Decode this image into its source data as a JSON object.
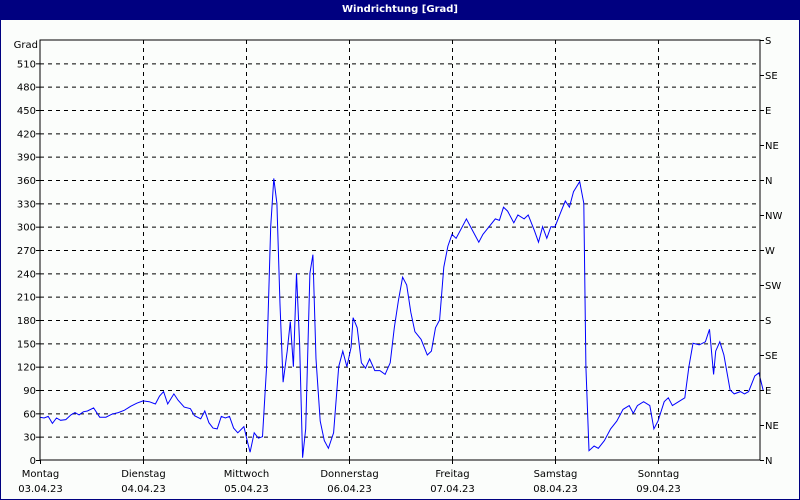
{
  "window": {
    "title": "Windrichtung [Grad]"
  },
  "colors": {
    "title_bar": "#000080",
    "background": "#fbfdfb",
    "series": "#0000ff",
    "grid": "#000000"
  },
  "chart_data": {
    "type": "line",
    "title": "Windrichtung [Grad]",
    "ylabel": "Grad",
    "xlabel": "",
    "ylim": [
      0,
      540
    ],
    "y_ticks": [
      0,
      30,
      60,
      90,
      120,
      150,
      180,
      210,
      240,
      270,
      300,
      330,
      360,
      390,
      420,
      450,
      480,
      510
    ],
    "y_top_label": "Grad",
    "right_axis_ticks": [
      {
        "value": 0,
        "label": "N"
      },
      {
        "value": 45,
        "label": "NE"
      },
      {
        "value": 90,
        "label": "E"
      },
      {
        "value": 135,
        "label": "SE"
      },
      {
        "value": 180,
        "label": "S"
      },
      {
        "value": 225,
        "label": "SW"
      },
      {
        "value": 270,
        "label": "W"
      },
      {
        "value": 315,
        "label": "NW"
      },
      {
        "value": 360,
        "label": "N"
      },
      {
        "value": 405,
        "label": "NE"
      },
      {
        "value": 450,
        "label": "E"
      },
      {
        "value": 495,
        "label": "SE"
      },
      {
        "value": 540,
        "label": "S"
      }
    ],
    "x_ticks": [
      {
        "day": "Montag",
        "date": "03.04.23"
      },
      {
        "day": "Dienstag",
        "date": "04.04.23"
      },
      {
        "day": "Mittwoch",
        "date": "05.04.23"
      },
      {
        "day": "Donnerstag",
        "date": "06.04.23"
      },
      {
        "day": "Freitag",
        "date": "07.04.23"
      },
      {
        "day": "Samstag",
        "date": "08.04.23"
      },
      {
        "day": "Sonntag",
        "date": "09.04.23"
      }
    ],
    "grid": true,
    "legend": "none",
    "x_unit": "days since 03.04.23 00:00",
    "series": [
      {
        "name": "Windrichtung",
        "points": [
          [
            0.0,
            55
          ],
          [
            0.04,
            54
          ],
          [
            0.08,
            56
          ],
          [
            0.12,
            47
          ],
          [
            0.16,
            54
          ],
          [
            0.2,
            51
          ],
          [
            0.25,
            52
          ],
          [
            0.3,
            58
          ],
          [
            0.34,
            61
          ],
          [
            0.38,
            58
          ],
          [
            0.42,
            62
          ],
          [
            0.46,
            63
          ],
          [
            0.52,
            67
          ],
          [
            0.58,
            55
          ],
          [
            0.64,
            55
          ],
          [
            0.7,
            59
          ],
          [
            0.76,
            61
          ],
          [
            0.82,
            64
          ],
          [
            0.88,
            69
          ],
          [
            0.94,
            73
          ],
          [
            1.0,
            76
          ],
          [
            1.06,
            75
          ],
          [
            1.12,
            72
          ],
          [
            1.16,
            82
          ],
          [
            1.2,
            88
          ],
          [
            1.24,
            72
          ],
          [
            1.3,
            85
          ],
          [
            1.34,
            77
          ],
          [
            1.4,
            68
          ],
          [
            1.46,
            66
          ],
          [
            1.5,
            57
          ],
          [
            1.56,
            53
          ],
          [
            1.6,
            63
          ],
          [
            1.64,
            48
          ],
          [
            1.68,
            41
          ],
          [
            1.72,
            40
          ],
          [
            1.76,
            56
          ],
          [
            1.8,
            54
          ],
          [
            1.84,
            56
          ],
          [
            1.88,
            41
          ],
          [
            1.92,
            35
          ],
          [
            1.98,
            43
          ],
          [
            2.02,
            20
          ],
          [
            2.04,
            10
          ],
          [
            2.08,
            35
          ],
          [
            2.12,
            28
          ],
          [
            2.16,
            30
          ],
          [
            2.2,
            120
          ],
          [
            2.24,
            300
          ],
          [
            2.27,
            362
          ],
          [
            2.3,
            330
          ],
          [
            2.33,
            200
          ],
          [
            2.36,
            100
          ],
          [
            2.4,
            140
          ],
          [
            2.43,
            178
          ],
          [
            2.46,
            120
          ],
          [
            2.49,
            240
          ],
          [
            2.52,
            150
          ],
          [
            2.55,
            3
          ],
          [
            2.58,
            40
          ],
          [
            2.62,
            240
          ],
          [
            2.65,
            264
          ],
          [
            2.68,
            130
          ],
          [
            2.72,
            50
          ],
          [
            2.76,
            25
          ],
          [
            2.8,
            15
          ],
          [
            2.85,
            35
          ],
          [
            2.9,
            120
          ],
          [
            2.94,
            140
          ],
          [
            2.98,
            120
          ],
          [
            3.02,
            145
          ],
          [
            3.04,
            183
          ],
          [
            3.08,
            170
          ],
          [
            3.12,
            125
          ],
          [
            3.16,
            118
          ],
          [
            3.2,
            130
          ],
          [
            3.25,
            115
          ],
          [
            3.3,
            115
          ],
          [
            3.35,
            110
          ],
          [
            3.4,
            125
          ],
          [
            3.44,
            170
          ],
          [
            3.48,
            205
          ],
          [
            3.52,
            235
          ],
          [
            3.56,
            225
          ],
          [
            3.6,
            190
          ],
          [
            3.64,
            165
          ],
          [
            3.7,
            155
          ],
          [
            3.76,
            135
          ],
          [
            3.8,
            140
          ],
          [
            3.84,
            170
          ],
          [
            3.88,
            180
          ],
          [
            3.92,
            248
          ],
          [
            3.96,
            275
          ],
          [
            4.0,
            290
          ],
          [
            4.04,
            285
          ],
          [
            4.1,
            300
          ],
          [
            4.14,
            310
          ],
          [
            4.2,
            295
          ],
          [
            4.26,
            280
          ],
          [
            4.3,
            290
          ],
          [
            4.36,
            300
          ],
          [
            4.42,
            310
          ],
          [
            4.46,
            308
          ],
          [
            4.5,
            325
          ],
          [
            4.54,
            320
          ],
          [
            4.6,
            305
          ],
          [
            4.64,
            315
          ],
          [
            4.7,
            310
          ],
          [
            4.74,
            315
          ],
          [
            4.8,
            295
          ],
          [
            4.84,
            280
          ],
          [
            4.88,
            300
          ],
          [
            4.92,
            285
          ],
          [
            4.96,
            300
          ],
          [
            5.0,
            300
          ],
          [
            5.06,
            320
          ],
          [
            5.1,
            333
          ],
          [
            5.14,
            325
          ],
          [
            5.18,
            345
          ],
          [
            5.24,
            358
          ],
          [
            5.28,
            330
          ],
          [
            5.3,
            120
          ],
          [
            5.33,
            12
          ],
          [
            5.38,
            18
          ],
          [
            5.42,
            15
          ],
          [
            5.48,
            25
          ],
          [
            5.54,
            40
          ],
          [
            5.6,
            50
          ],
          [
            5.66,
            65
          ],
          [
            5.72,
            70
          ],
          [
            5.76,
            60
          ],
          [
            5.8,
            70
          ],
          [
            5.86,
            75
          ],
          [
            5.92,
            70
          ],
          [
            5.96,
            40
          ],
          [
            6.0,
            50
          ],
          [
            6.06,
            75
          ],
          [
            6.1,
            80
          ],
          [
            6.14,
            70
          ],
          [
            6.2,
            75
          ],
          [
            6.26,
            80
          ],
          [
            6.3,
            120
          ],
          [
            6.34,
            150
          ],
          [
            6.4,
            148
          ],
          [
            6.46,
            152
          ],
          [
            6.5,
            168
          ],
          [
            6.54,
            110
          ],
          [
            6.56,
            140
          ],
          [
            6.6,
            152
          ],
          [
            6.64,
            135
          ],
          [
            6.7,
            90
          ],
          [
            6.74,
            85
          ],
          [
            6.8,
            88
          ],
          [
            6.84,
            85
          ],
          [
            6.88,
            88
          ],
          [
            6.94,
            108
          ],
          [
            6.98,
            112
          ],
          [
            7.02,
            90
          ]
        ]
      }
    ]
  }
}
